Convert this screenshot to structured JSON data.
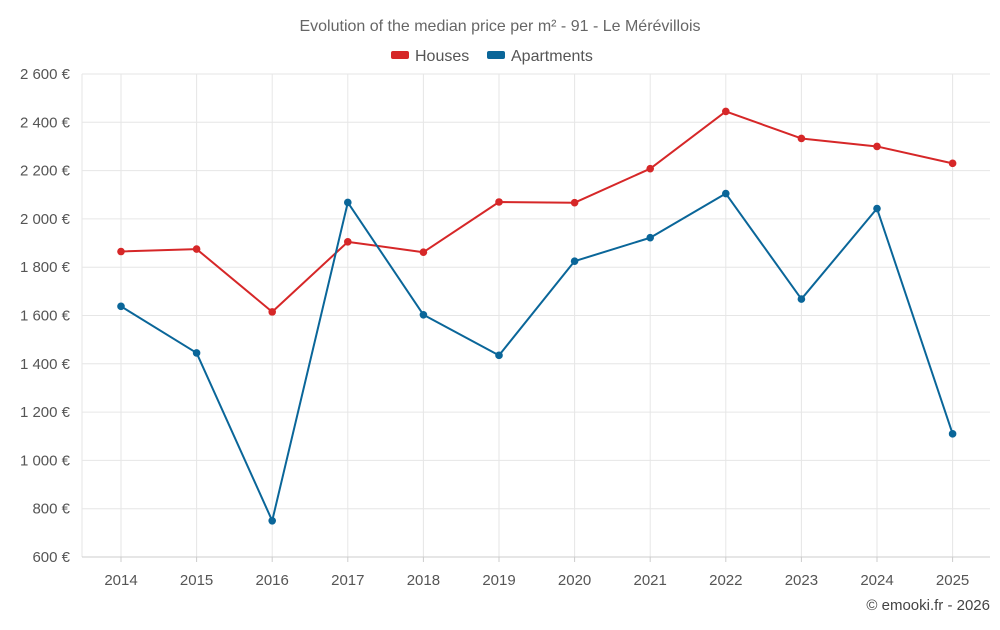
{
  "chart_data": {
    "type": "line",
    "title": "Evolution of the median price per m² - 91 - Le Mérévillois",
    "categories": [
      "2014",
      "2015",
      "2016",
      "2017",
      "2018",
      "2019",
      "2020",
      "2021",
      "2022",
      "2023",
      "2024",
      "2025"
    ],
    "series": [
      {
        "name": "Houses",
        "color": "#d62728",
        "values": [
          1865,
          1875,
          1615,
          1905,
          1862,
          2070,
          2067,
          2208,
          2445,
          2333,
          2300,
          2230
        ]
      },
      {
        "name": "Apartments",
        "color": "#0a6699",
        "values": [
          1638,
          1445,
          750,
          2068,
          1603,
          1435,
          1825,
          1922,
          2105,
          1668,
          2043,
          1110
        ]
      }
    ],
    "ylim": [
      600,
      2600
    ],
    "yticks": [
      600,
      800,
      1000,
      1200,
      1400,
      1600,
      1800,
      2000,
      2200,
      2400,
      2600
    ],
    "ytick_labels": [
      "600 €",
      "800 €",
      "1 000 €",
      "1 200 €",
      "1 400 €",
      "1 600 €",
      "1 800 €",
      "2 000 €",
      "2 200 €",
      "2 400 €",
      "2 600 €"
    ],
    "xlabel": "",
    "ylabel": "",
    "legend_position": "top-center",
    "grid": true
  },
  "credit": "© emooki.fr - 2026"
}
